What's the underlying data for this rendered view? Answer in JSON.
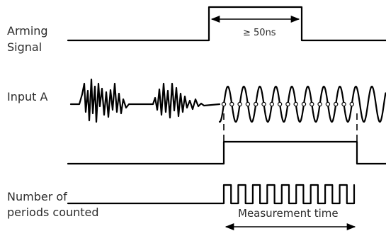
{
  "labels": {
    "arming_line1": "Arming",
    "arming_line2": "Signal",
    "input_a": "Input A",
    "periods_line1": "Number of",
    "periods_line2": "periods counted",
    "pulse_width": "≥ 50ns",
    "measurement_time": "Measurement time"
  },
  "input_a_waveform": {
    "noise_bursts": 2,
    "sine_cycles": 9
  },
  "periods_counted": {
    "pulse_count": 9
  }
}
